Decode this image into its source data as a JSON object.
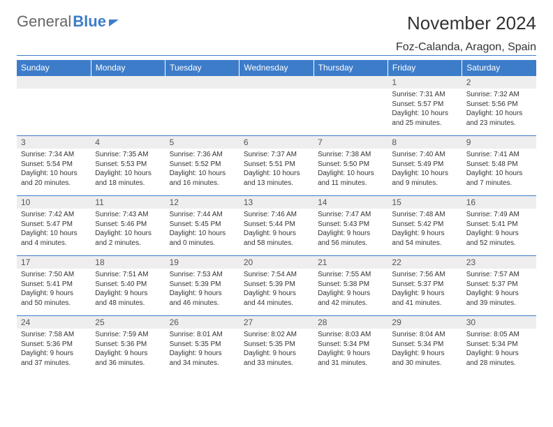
{
  "brand": {
    "part1": "General",
    "part2": "Blue"
  },
  "title": "November 2024",
  "location": "Foz-Calanda, Aragon, Spain",
  "colors": {
    "accent": "#3d7cc9",
    "header_bg": "#3d7cc9",
    "header_fg": "#ffffff",
    "daynum_bg": "#eeeeee",
    "text": "#333333"
  },
  "weekdays": [
    "Sunday",
    "Monday",
    "Tuesday",
    "Wednesday",
    "Thursday",
    "Friday",
    "Saturday"
  ],
  "weeks": [
    [
      {
        "n": "",
        "sr": "",
        "ss": "",
        "dl1": "",
        "dl2": ""
      },
      {
        "n": "",
        "sr": "",
        "ss": "",
        "dl1": "",
        "dl2": ""
      },
      {
        "n": "",
        "sr": "",
        "ss": "",
        "dl1": "",
        "dl2": ""
      },
      {
        "n": "",
        "sr": "",
        "ss": "",
        "dl1": "",
        "dl2": ""
      },
      {
        "n": "",
        "sr": "",
        "ss": "",
        "dl1": "",
        "dl2": ""
      },
      {
        "n": "1",
        "sr": "Sunrise: 7:31 AM",
        "ss": "Sunset: 5:57 PM",
        "dl1": "Daylight: 10 hours",
        "dl2": "and 25 minutes."
      },
      {
        "n": "2",
        "sr": "Sunrise: 7:32 AM",
        "ss": "Sunset: 5:56 PM",
        "dl1": "Daylight: 10 hours",
        "dl2": "and 23 minutes."
      }
    ],
    [
      {
        "n": "3",
        "sr": "Sunrise: 7:34 AM",
        "ss": "Sunset: 5:54 PM",
        "dl1": "Daylight: 10 hours",
        "dl2": "and 20 minutes."
      },
      {
        "n": "4",
        "sr": "Sunrise: 7:35 AM",
        "ss": "Sunset: 5:53 PM",
        "dl1": "Daylight: 10 hours",
        "dl2": "and 18 minutes."
      },
      {
        "n": "5",
        "sr": "Sunrise: 7:36 AM",
        "ss": "Sunset: 5:52 PM",
        "dl1": "Daylight: 10 hours",
        "dl2": "and 16 minutes."
      },
      {
        "n": "6",
        "sr": "Sunrise: 7:37 AM",
        "ss": "Sunset: 5:51 PM",
        "dl1": "Daylight: 10 hours",
        "dl2": "and 13 minutes."
      },
      {
        "n": "7",
        "sr": "Sunrise: 7:38 AM",
        "ss": "Sunset: 5:50 PM",
        "dl1": "Daylight: 10 hours",
        "dl2": "and 11 minutes."
      },
      {
        "n": "8",
        "sr": "Sunrise: 7:40 AM",
        "ss": "Sunset: 5:49 PM",
        "dl1": "Daylight: 10 hours",
        "dl2": "and 9 minutes."
      },
      {
        "n": "9",
        "sr": "Sunrise: 7:41 AM",
        "ss": "Sunset: 5:48 PM",
        "dl1": "Daylight: 10 hours",
        "dl2": "and 7 minutes."
      }
    ],
    [
      {
        "n": "10",
        "sr": "Sunrise: 7:42 AM",
        "ss": "Sunset: 5:47 PM",
        "dl1": "Daylight: 10 hours",
        "dl2": "and 4 minutes."
      },
      {
        "n": "11",
        "sr": "Sunrise: 7:43 AM",
        "ss": "Sunset: 5:46 PM",
        "dl1": "Daylight: 10 hours",
        "dl2": "and 2 minutes."
      },
      {
        "n": "12",
        "sr": "Sunrise: 7:44 AM",
        "ss": "Sunset: 5:45 PM",
        "dl1": "Daylight: 10 hours",
        "dl2": "and 0 minutes."
      },
      {
        "n": "13",
        "sr": "Sunrise: 7:46 AM",
        "ss": "Sunset: 5:44 PM",
        "dl1": "Daylight: 9 hours",
        "dl2": "and 58 minutes."
      },
      {
        "n": "14",
        "sr": "Sunrise: 7:47 AM",
        "ss": "Sunset: 5:43 PM",
        "dl1": "Daylight: 9 hours",
        "dl2": "and 56 minutes."
      },
      {
        "n": "15",
        "sr": "Sunrise: 7:48 AM",
        "ss": "Sunset: 5:42 PM",
        "dl1": "Daylight: 9 hours",
        "dl2": "and 54 minutes."
      },
      {
        "n": "16",
        "sr": "Sunrise: 7:49 AM",
        "ss": "Sunset: 5:41 PM",
        "dl1": "Daylight: 9 hours",
        "dl2": "and 52 minutes."
      }
    ],
    [
      {
        "n": "17",
        "sr": "Sunrise: 7:50 AM",
        "ss": "Sunset: 5:41 PM",
        "dl1": "Daylight: 9 hours",
        "dl2": "and 50 minutes."
      },
      {
        "n": "18",
        "sr": "Sunrise: 7:51 AM",
        "ss": "Sunset: 5:40 PM",
        "dl1": "Daylight: 9 hours",
        "dl2": "and 48 minutes."
      },
      {
        "n": "19",
        "sr": "Sunrise: 7:53 AM",
        "ss": "Sunset: 5:39 PM",
        "dl1": "Daylight: 9 hours",
        "dl2": "and 46 minutes."
      },
      {
        "n": "20",
        "sr": "Sunrise: 7:54 AM",
        "ss": "Sunset: 5:39 PM",
        "dl1": "Daylight: 9 hours",
        "dl2": "and 44 minutes."
      },
      {
        "n": "21",
        "sr": "Sunrise: 7:55 AM",
        "ss": "Sunset: 5:38 PM",
        "dl1": "Daylight: 9 hours",
        "dl2": "and 42 minutes."
      },
      {
        "n": "22",
        "sr": "Sunrise: 7:56 AM",
        "ss": "Sunset: 5:37 PM",
        "dl1": "Daylight: 9 hours",
        "dl2": "and 41 minutes."
      },
      {
        "n": "23",
        "sr": "Sunrise: 7:57 AM",
        "ss": "Sunset: 5:37 PM",
        "dl1": "Daylight: 9 hours",
        "dl2": "and 39 minutes."
      }
    ],
    [
      {
        "n": "24",
        "sr": "Sunrise: 7:58 AM",
        "ss": "Sunset: 5:36 PM",
        "dl1": "Daylight: 9 hours",
        "dl2": "and 37 minutes."
      },
      {
        "n": "25",
        "sr": "Sunrise: 7:59 AM",
        "ss": "Sunset: 5:36 PM",
        "dl1": "Daylight: 9 hours",
        "dl2": "and 36 minutes."
      },
      {
        "n": "26",
        "sr": "Sunrise: 8:01 AM",
        "ss": "Sunset: 5:35 PM",
        "dl1": "Daylight: 9 hours",
        "dl2": "and 34 minutes."
      },
      {
        "n": "27",
        "sr": "Sunrise: 8:02 AM",
        "ss": "Sunset: 5:35 PM",
        "dl1": "Daylight: 9 hours",
        "dl2": "and 33 minutes."
      },
      {
        "n": "28",
        "sr": "Sunrise: 8:03 AM",
        "ss": "Sunset: 5:34 PM",
        "dl1": "Daylight: 9 hours",
        "dl2": "and 31 minutes."
      },
      {
        "n": "29",
        "sr": "Sunrise: 8:04 AM",
        "ss": "Sunset: 5:34 PM",
        "dl1": "Daylight: 9 hours",
        "dl2": "and 30 minutes."
      },
      {
        "n": "30",
        "sr": "Sunrise: 8:05 AM",
        "ss": "Sunset: 5:34 PM",
        "dl1": "Daylight: 9 hours",
        "dl2": "and 28 minutes."
      }
    ]
  ]
}
